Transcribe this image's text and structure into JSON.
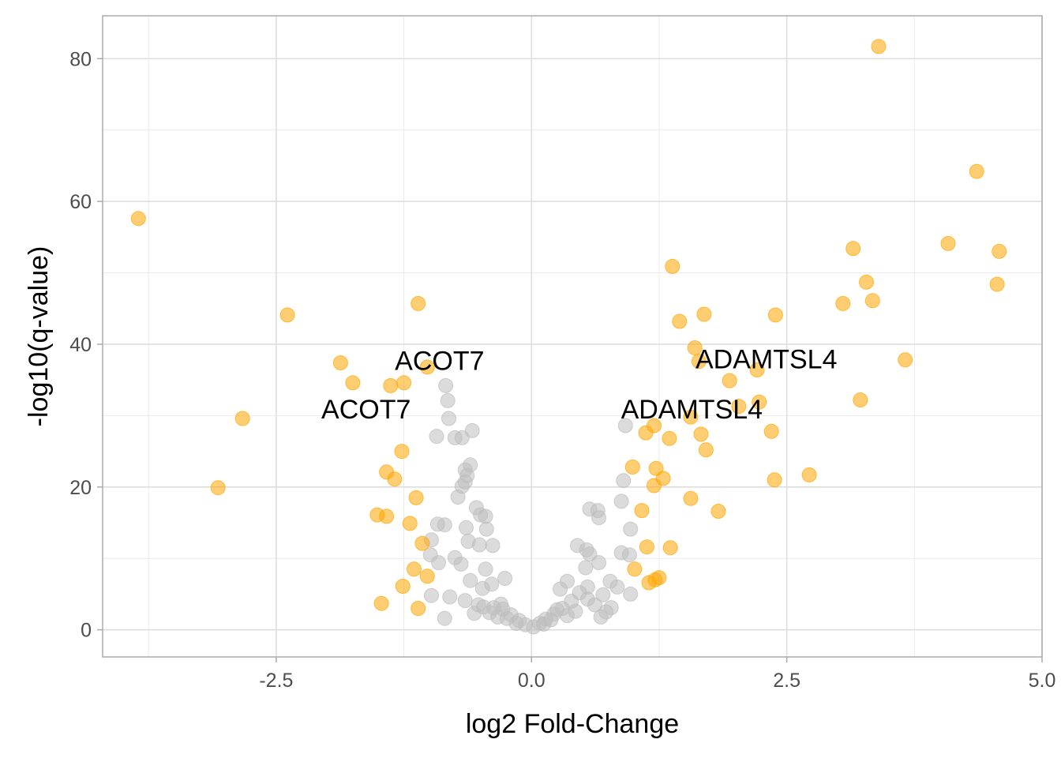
{
  "chart_data": {
    "type": "scatter",
    "xlabel": "log2 Fold-Change",
    "ylabel": "-log10(q-value)",
    "xlim": [
      -4.2,
      5.0
    ],
    "ylim": [
      -3.8,
      86
    ],
    "x_ticks": [
      -2.5,
      0.0,
      2.5,
      5.0
    ],
    "x_tick_labels": [
      "-2.5",
      "0.0",
      "2.5",
      "5.0"
    ],
    "y_ticks": [
      0,
      20,
      40,
      60,
      80
    ],
    "y_tick_labels": [
      "0",
      "20",
      "40",
      "60",
      "80"
    ],
    "grid": true,
    "colors": {
      "significant": "#FFA500",
      "not_significant": "#BEBEBE",
      "grid_major": "#DEDEDE",
      "grid_minor": "#EBEBEB",
      "panel_border": "#ABABAB"
    },
    "series": [
      {
        "color": "#FFA500",
        "points": [
          [
            -3.85,
            57.6
          ],
          [
            -3.07,
            19.9
          ],
          [
            -2.83,
            29.6
          ],
          [
            -2.39,
            44.1
          ],
          [
            -1.87,
            37.4
          ],
          [
            -1.75,
            34.6
          ],
          [
            -1.38,
            34.2
          ],
          [
            -1.25,
            34.6
          ],
          [
            -1.02,
            36.8
          ],
          [
            -1.11,
            45.7
          ],
          [
            -1.27,
            25.0
          ],
          [
            -1.42,
            22.1
          ],
          [
            -1.34,
            21.1
          ],
          [
            -1.13,
            18.5
          ],
          [
            -1.51,
            16.1
          ],
          [
            -1.42,
            15.9
          ],
          [
            -1.19,
            14.9
          ],
          [
            -1.07,
            12.1
          ],
          [
            -1.15,
            8.5
          ],
          [
            -1.02,
            7.5
          ],
          [
            -1.26,
            6.1
          ],
          [
            -1.47,
            3.7
          ],
          [
            -1.11,
            3.0
          ],
          [
            1.38,
            50.9
          ],
          [
            1.45,
            43.2
          ],
          [
            1.69,
            44.2
          ],
          [
            1.6,
            39.5
          ],
          [
            1.64,
            37.6
          ],
          [
            1.94,
            34.9
          ],
          [
            2.21,
            36.4
          ],
          [
            2.39,
            44.1
          ],
          [
            1.56,
            29.8
          ],
          [
            1.2,
            28.6
          ],
          [
            1.12,
            27.6
          ],
          [
            1.35,
            26.8
          ],
          [
            1.66,
            27.4
          ],
          [
            1.71,
            25.2
          ],
          [
            2.03,
            31.3
          ],
          [
            2.23,
            31.9
          ],
          [
            2.35,
            27.8
          ],
          [
            0.99,
            22.8
          ],
          [
            1.22,
            22.6
          ],
          [
            1.29,
            21.2
          ],
          [
            1.2,
            20.2
          ],
          [
            1.56,
            18.4
          ],
          [
            2.38,
            21.0
          ],
          [
            2.72,
            21.7
          ],
          [
            1.08,
            16.7
          ],
          [
            1.83,
            16.6
          ],
          [
            1.13,
            11.6
          ],
          [
            1.36,
            11.5
          ],
          [
            1.01,
            8.5
          ],
          [
            1.15,
            6.6
          ],
          [
            1.25,
            7.3
          ],
          [
            1.21,
            7.0
          ],
          [
            3.4,
            81.7
          ],
          [
            4.36,
            64.2
          ],
          [
            4.08,
            54.1
          ],
          [
            3.15,
            53.4
          ],
          [
            4.58,
            53.0
          ],
          [
            4.56,
            48.4
          ],
          [
            3.28,
            48.7
          ],
          [
            3.34,
            46.1
          ],
          [
            3.05,
            45.7
          ],
          [
            3.66,
            37.8
          ],
          [
            3.22,
            32.2
          ]
        ]
      },
      {
        "color": "#BEBEBE",
        "points": [
          [
            -0.84,
            34.2
          ],
          [
            -0.82,
            32.1
          ],
          [
            -0.81,
            29.6
          ],
          [
            -0.93,
            27.1
          ],
          [
            -0.75,
            26.9
          ],
          [
            -0.68,
            26.9
          ],
          [
            -0.58,
            27.9
          ],
          [
            -0.6,
            23.1
          ],
          [
            -0.65,
            22.4
          ],
          [
            -0.63,
            21.6
          ],
          [
            -0.65,
            20.7
          ],
          [
            -0.68,
            20.1
          ],
          [
            -0.72,
            18.6
          ],
          [
            -0.54,
            17.1
          ],
          [
            -0.5,
            16.1
          ],
          [
            -0.45,
            15.9
          ],
          [
            -0.92,
            14.8
          ],
          [
            -0.85,
            14.7
          ],
          [
            -0.64,
            14.3
          ],
          [
            -0.44,
            14.1
          ],
          [
            -0.98,
            12.6
          ],
          [
            -0.62,
            12.4
          ],
          [
            -0.51,
            11.9
          ],
          [
            -0.38,
            11.8
          ],
          [
            -0.99,
            10.5
          ],
          [
            -0.75,
            10.1
          ],
          [
            -0.91,
            9.4
          ],
          [
            -0.69,
            9.2
          ],
          [
            -0.45,
            8.5
          ],
          [
            -0.6,
            6.9
          ],
          [
            -0.39,
            6.4
          ],
          [
            -0.26,
            7.2
          ],
          [
            -0.48,
            5.8
          ],
          [
            -0.98,
            4.8
          ],
          [
            -0.8,
            4.6
          ],
          [
            -0.65,
            4.1
          ],
          [
            -0.52,
            3.5
          ],
          [
            -0.37,
            3.1
          ],
          [
            -0.28,
            2.9
          ],
          [
            -0.85,
            1.6
          ],
          [
            -0.56,
            2.3
          ],
          [
            -0.41,
            2.4
          ],
          [
            -0.33,
            1.8
          ],
          [
            -0.2,
            2.1
          ],
          [
            -0.12,
            1.3
          ],
          [
            -0.06,
            0.7
          ],
          [
            0.02,
            0.4
          ],
          [
            0.08,
            0.9
          ],
          [
            0.14,
            1.5
          ],
          [
            0.22,
            2.2
          ],
          [
            0.3,
            3.0
          ],
          [
            0.39,
            4.0
          ],
          [
            0.47,
            5.2
          ],
          [
            0.55,
            6.0
          ],
          [
            0.53,
            8.7
          ],
          [
            0.57,
            10.6
          ],
          [
            0.35,
            6.8
          ],
          [
            0.28,
            5.7
          ],
          [
            0.62,
            3.5
          ],
          [
            0.73,
            2.5
          ],
          [
            0.68,
            1.8
          ],
          [
            0.43,
            2.6
          ],
          [
            0.35,
            2.0
          ],
          [
            0.19,
            1.4
          ],
          [
            0.12,
            0.8
          ],
          [
            0.45,
            11.8
          ],
          [
            0.54,
            11.2
          ],
          [
            0.66,
            9.4
          ],
          [
            0.77,
            6.8
          ],
          [
            0.84,
            6.0
          ],
          [
            0.88,
            10.8
          ],
          [
            0.96,
            10.5
          ],
          [
            0.97,
            14.1
          ],
          [
            0.88,
            18.0
          ],
          [
            0.9,
            20.9
          ],
          [
            0.92,
            28.6
          ],
          [
            0.57,
            16.9
          ],
          [
            0.65,
            16.7
          ],
          [
            0.66,
            15.7
          ],
          [
            0.7,
            4.9
          ],
          [
            0.78,
            3.1
          ],
          [
            0.97,
            5.0
          ],
          [
            0.55,
            4.3
          ],
          [
            0.25,
            2.8
          ],
          [
            -0.15,
            0.9
          ],
          [
            -0.24,
            1.6
          ],
          [
            -0.3,
            3.6
          ],
          [
            -0.47,
            3.2
          ]
        ]
      }
    ],
    "annotations": [
      {
        "text": "ACOT7",
        "x": -0.9,
        "y": 36.4
      },
      {
        "text": "ACOT7",
        "x": -1.62,
        "y": 29.6
      },
      {
        "text": "ADAMTSL4",
        "x": 2.3,
        "y": 36.6
      },
      {
        "text": "ADAMTSL4",
        "x": 1.57,
        "y": 29.6
      }
    ]
  }
}
